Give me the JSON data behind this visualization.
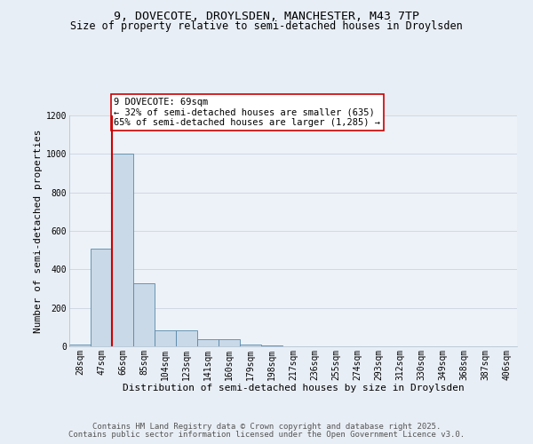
{
  "title1": "9, DOVECOTE, DROYLSDEN, MANCHESTER, M43 7TP",
  "title2": "Size of property relative to semi-detached houses in Droylsden",
  "xlabel": "Distribution of semi-detached houses by size in Droylsden",
  "ylabel": "Number of semi-detached properties",
  "categories": [
    "28sqm",
    "47sqm",
    "66sqm",
    "85sqm",
    "104sqm",
    "123sqm",
    "141sqm",
    "160sqm",
    "179sqm",
    "198sqm",
    "217sqm",
    "236sqm",
    "255sqm",
    "274sqm",
    "293sqm",
    "312sqm",
    "330sqm",
    "349sqm",
    "368sqm",
    "387sqm",
    "406sqm"
  ],
  "values": [
    10,
    510,
    1000,
    330,
    85,
    85,
    35,
    35,
    10,
    5,
    0,
    0,
    0,
    0,
    0,
    0,
    0,
    0,
    0,
    0,
    0
  ],
  "bar_color": "#c9d9e8",
  "bar_edge_color": "#5588aa",
  "highlight_index": 2,
  "highlight_line_color": "#cc0000",
  "annotation_text": "9 DOVECOTE: 69sqm\n← 32% of semi-detached houses are smaller (635)\n65% of semi-detached houses are larger (1,285) →",
  "annotation_box_color": "#ffffff",
  "annotation_box_edge_color": "#cc0000",
  "ylim": [
    0,
    1200
  ],
  "yticks": [
    0,
    200,
    400,
    600,
    800,
    1000,
    1200
  ],
  "footer1": "Contains HM Land Registry data © Crown copyright and database right 2025.",
  "footer2": "Contains public sector information licensed under the Open Government Licence v3.0.",
  "bg_color": "#e8eef5",
  "plot_bg_color": "#edf2f8",
  "grid_color": "#d0d8e4",
  "title_fontsize": 9.5,
  "subtitle_fontsize": 8.5,
  "axis_label_fontsize": 8,
  "tick_fontsize": 7,
  "footer_fontsize": 6.5,
  "annotation_fontsize": 7.5
}
